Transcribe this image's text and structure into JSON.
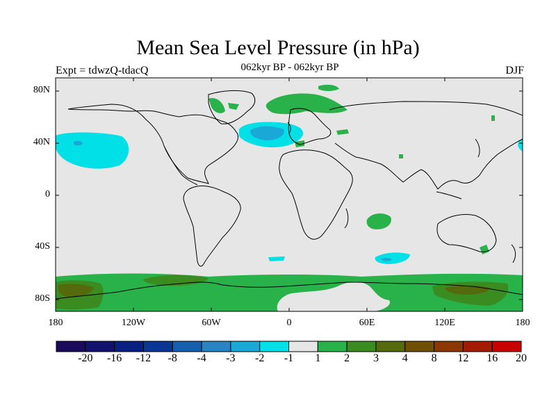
{
  "title": "Mean Sea Level Pressure (in hPa)",
  "subtitle_left": "Expt = tdwzQ-tdacQ",
  "subtitle_center": "062kyr BP - 062kyr BP",
  "subtitle_right": "DJF",
  "lat_labels": [
    "80N",
    "40N",
    "0",
    "40S",
    "80S"
  ],
  "lon_labels": [
    "180",
    "120W",
    "60W",
    "0",
    "60E",
    "120E",
    "180"
  ],
  "colorbar": {
    "labels": [
      "-20",
      "-16",
      "-12",
      "-8",
      "-4",
      "-3",
      "-2",
      "-1",
      "1",
      "2",
      "3",
      "4",
      "8",
      "12",
      "16",
      "20"
    ],
    "colors": [
      "#1a0a5c",
      "#10126e",
      "#082080",
      "#0a3694",
      "#1560ae",
      "#2a84c4",
      "#1aa8d6",
      "#00e0e6",
      "#e6e6e6",
      "#2ab24a",
      "#3a8c20",
      "#546a0c",
      "#6e5000",
      "#8c3600",
      "#a21c00",
      "#c80000"
    ]
  },
  "colors": {
    "land_bg": "#e6e6e6",
    "positive_2": "#2ab24a",
    "positive_3": "#3a8c20",
    "positive_4": "#546a0c",
    "negative_2": "#1aa8d6",
    "negative_1": "#00e0e6"
  }
}
